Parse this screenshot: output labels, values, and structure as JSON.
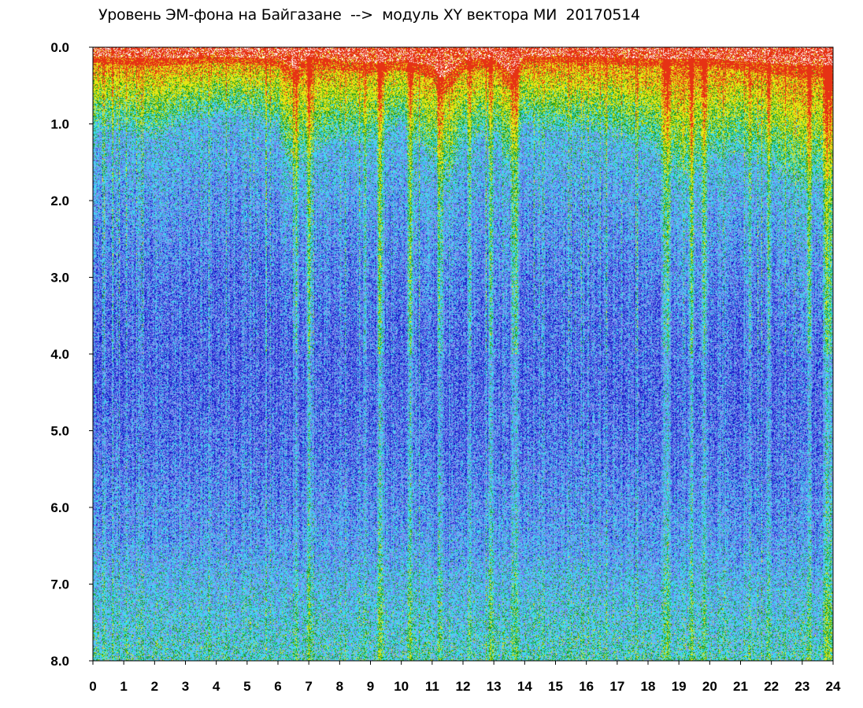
{
  "chart_data": {
    "type": "heatmap",
    "title": "Уровень ЭМ-фона на Байгазане  -->  модуль XY вектора МИ  20170514",
    "xlabel": "",
    "ylabel": "",
    "xlim": [
      0,
      24
    ],
    "ylim": [
      0,
      8
    ],
    "y_inverted": true,
    "grid": false,
    "x_ticks": [
      "0",
      "1",
      "2",
      "3",
      "4",
      "5",
      "6",
      "7",
      "8",
      "9",
      "10",
      "11",
      "12",
      "13",
      "14",
      "15",
      "16",
      "17",
      "18",
      "19",
      "20",
      "21",
      "22",
      "23",
      "24"
    ],
    "y_ticks": [
      "0.0",
      "1.0",
      "2.0",
      "3.0",
      "4.0",
      "5.0",
      "6.0",
      "7.0",
      "8.0"
    ],
    "color_scale": [
      "#1414c8",
      "#5a6ee6",
      "#8c9cf0",
      "#3cdcf0",
      "#1e9e1e",
      "#e6e614",
      "#e63214"
    ],
    "color_scale_order": "low value (bottom) → high value (top)",
    "vertical_streaks_x": [
      6.6,
      7.0,
      8.8,
      9.3,
      10.3,
      11.2,
      11.3,
      12.2,
      12.9,
      13.6,
      13.7,
      18.5,
      18.6,
      19.4,
      19.8,
      21.3,
      21.9,
      23.2,
      23.8,
      23.9
    ],
    "band_edge_depth": [
      [
        0,
        1.1
      ],
      [
        1,
        1.1
      ],
      [
        2,
        1.2
      ],
      [
        3,
        1.0
      ],
      [
        4,
        0.9
      ],
      [
        5,
        0.9
      ],
      [
        6,
        1.1
      ],
      [
        6.5,
        1.8
      ],
      [
        7,
        1.4
      ],
      [
        8,
        1.2
      ],
      [
        9,
        1.3
      ],
      [
        10,
        1.0
      ],
      [
        11,
        1.5
      ],
      [
        11.5,
        1.9
      ],
      [
        12,
        1.3
      ],
      [
        13,
        1.1
      ],
      [
        13.5,
        1.6
      ],
      [
        14,
        1.0
      ],
      [
        15,
        1.1
      ],
      [
        16,
        1.1
      ],
      [
        17,
        1.2
      ],
      [
        18,
        1.3
      ],
      [
        19,
        1.8
      ],
      [
        20,
        1.5
      ],
      [
        21,
        1.4
      ],
      [
        22,
        1.6
      ],
      [
        23,
        1.9
      ],
      [
        24,
        1.7
      ]
    ],
    "top_red_depth": [
      [
        0,
        0.2
      ],
      [
        2,
        0.25
      ],
      [
        4,
        0.2
      ],
      [
        6,
        0.25
      ],
      [
        6.6,
        0.5
      ],
      [
        7,
        0.2
      ],
      [
        8,
        0.3
      ],
      [
        9,
        0.35
      ],
      [
        10,
        0.3
      ],
      [
        11,
        0.4
      ],
      [
        11.3,
        0.7
      ],
      [
        12,
        0.3
      ],
      [
        13,
        0.25
      ],
      [
        13.6,
        0.6
      ],
      [
        14,
        0.2
      ],
      [
        16,
        0.2
      ],
      [
        18,
        0.25
      ],
      [
        20,
        0.25
      ],
      [
        21,
        0.3
      ],
      [
        22,
        0.35
      ],
      [
        23,
        0.4
      ],
      [
        24,
        0.4
      ]
    ]
  }
}
